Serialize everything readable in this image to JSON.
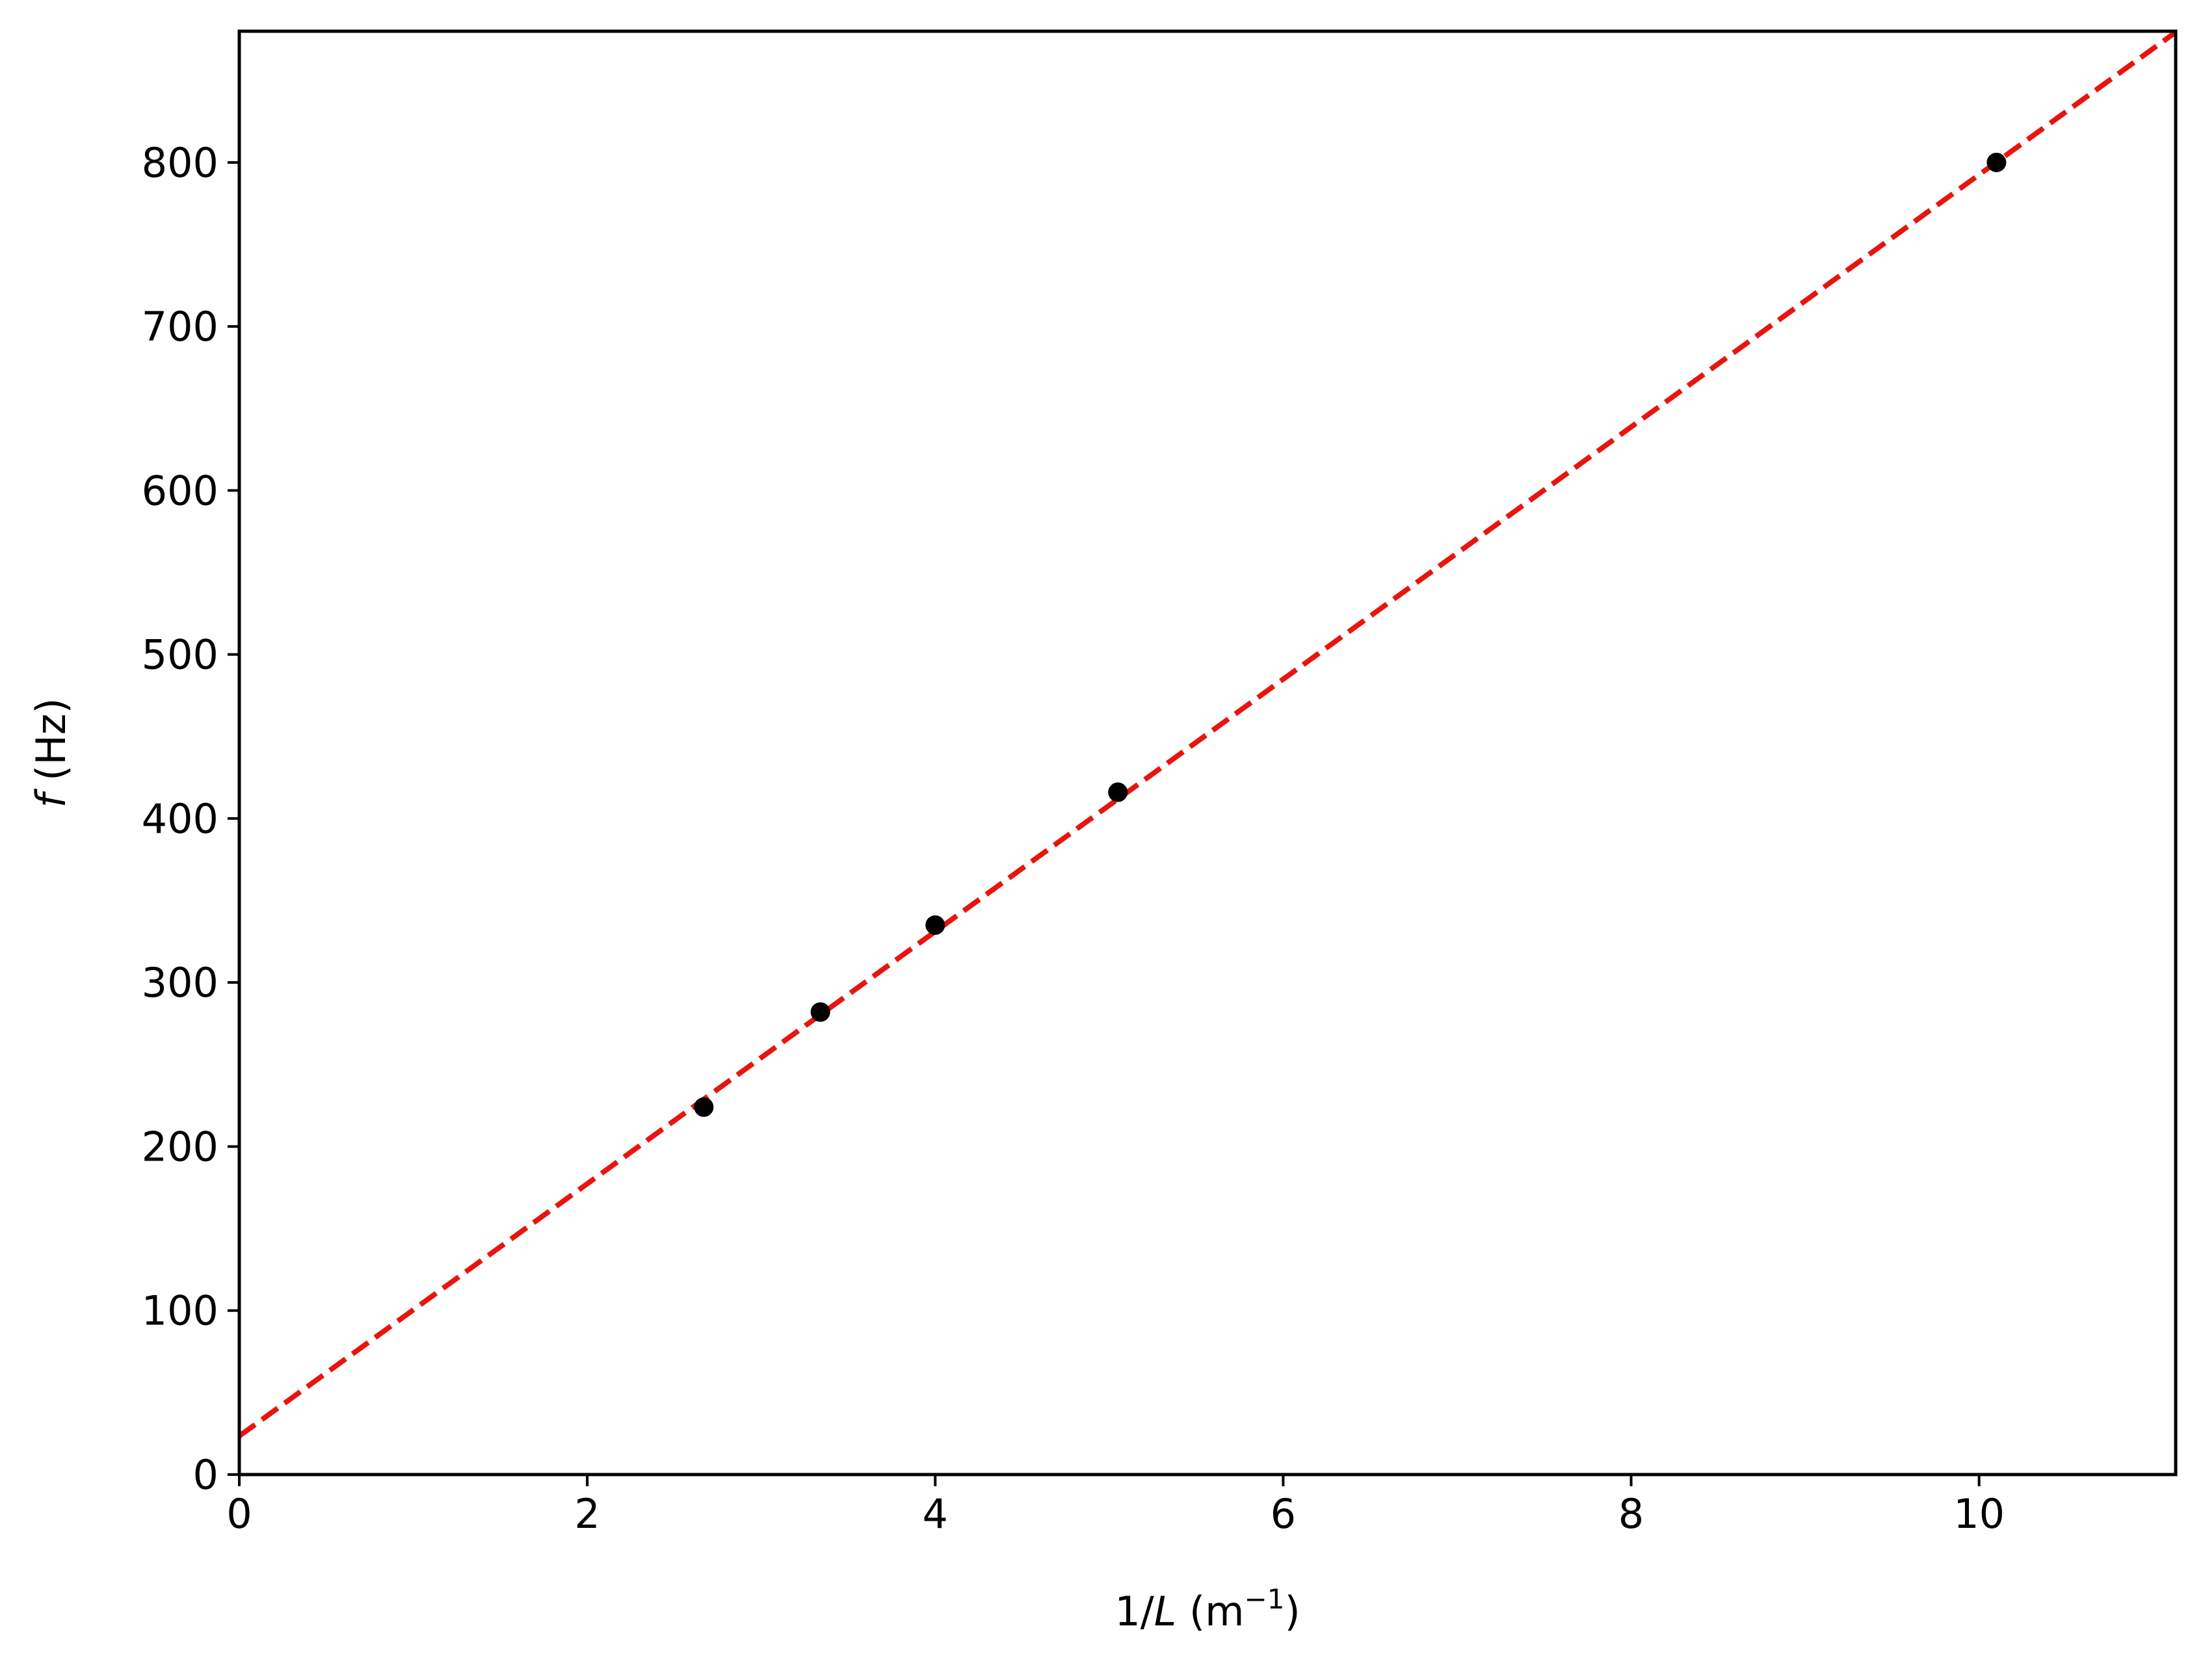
{
  "chart_data": {
    "type": "scatter",
    "xlabel": {
      "prefix": "1/",
      "var": "L",
      "unit_open": " (m",
      "unit_sup": "−1",
      "unit_close": ")"
    },
    "ylabel": {
      "var": "f",
      "unit": " (Hz)"
    },
    "xlim": [
      0,
      11.13
    ],
    "ylim": [
      0,
      880
    ],
    "xticks": [
      0,
      2,
      4,
      6,
      8,
      10
    ],
    "xtick_labels": [
      "0",
      "2",
      "4",
      "6",
      "8",
      "10"
    ],
    "yticks": [
      0,
      100,
      200,
      300,
      400,
      500,
      600,
      700,
      800
    ],
    "ytick_labels": [
      "0",
      "100",
      "200",
      "300",
      "400",
      "500",
      "600",
      "700",
      "800"
    ],
    "grid": false,
    "series": [
      {
        "marker_color": "#000000",
        "x": [
          2.67,
          3.34,
          4.0,
          5.05,
          10.1
        ],
        "y": [
          224,
          282,
          335,
          416,
          800
        ]
      }
    ],
    "fit_line": {
      "color": "#e8150f",
      "style": "dashed",
      "slope": 76.9,
      "intercept": 23.5
    }
  }
}
